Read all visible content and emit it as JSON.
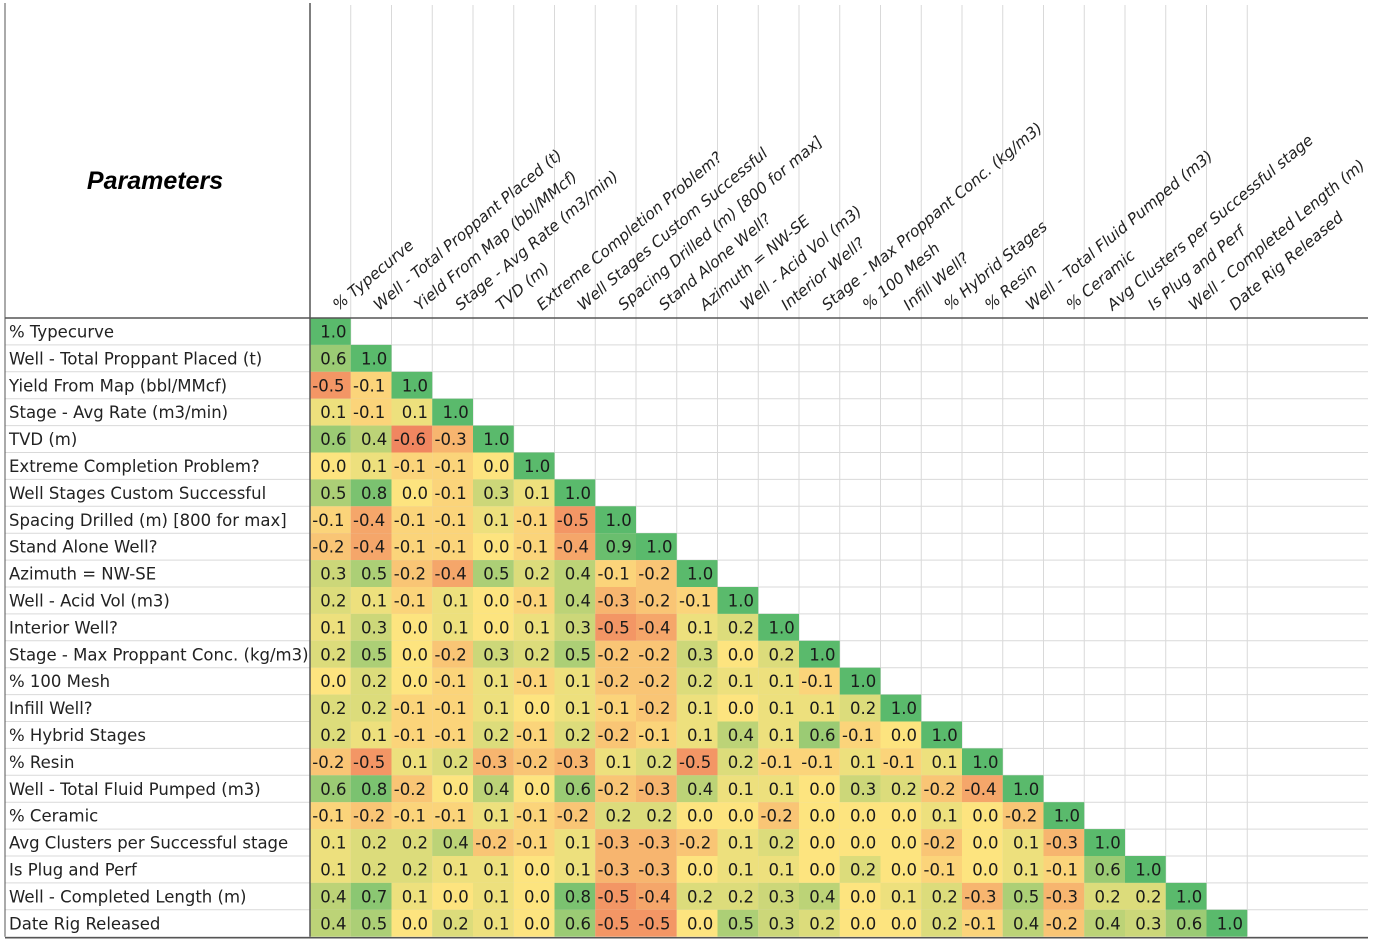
{
  "header": {
    "title": "Parameters"
  },
  "chart_data": {
    "type": "heatmap",
    "title": "Parameters",
    "color_scale": {
      "low": "#e8484b",
      "mid": "#fde47f",
      "high": "#5aba6c",
      "range": [
        -1,
        1
      ]
    },
    "grid": true,
    "labels": [
      "% Typecurve",
      "Well - Total Proppant Placed (t)",
      "Yield From Map (bbl/MMcf)",
      "Stage - Avg Rate (m3/min)",
      "TVD (m)",
      "Extreme Completion Problem?",
      "Well Stages Custom Successful",
      "Spacing Drilled (m) [800 for max]",
      "Stand Alone Well?",
      "Azimuth = NW-SE",
      "Well - Acid Vol (m3)",
      "Interior Well?",
      "Stage - Max Proppant Conc. (kg/m3)",
      "% 100 Mesh",
      "Infill Well?",
      "% Hybrid Stages",
      "% Resin",
      "Well - Total Fluid Pumped (m3)",
      "% Ceramic",
      "Avg Clusters per Successful stage",
      "Is Plug and Perf",
      "Well - Completed Length (m)",
      "Date Rig Released"
    ],
    "matrix": [
      [
        "1.0"
      ],
      [
        "0.6",
        "1.0"
      ],
      [
        "-0.5",
        "-0.1",
        "1.0"
      ],
      [
        "0.1",
        "-0.1",
        "0.1",
        "1.0"
      ],
      [
        "0.6",
        "0.4",
        "-0.6",
        "-0.3",
        "1.0"
      ],
      [
        "0.0",
        "0.1",
        "-0.1",
        "-0.1",
        "0.0",
        "1.0"
      ],
      [
        "0.5",
        "0.8",
        "0.0",
        "-0.1",
        "0.3",
        "0.1",
        "1.0"
      ],
      [
        "-0.1",
        "-0.4",
        "-0.1",
        "-0.1",
        "0.1",
        "-0.1",
        "-0.5",
        "1.0"
      ],
      [
        "-0.2",
        "-0.4",
        "-0.1",
        "-0.1",
        "0.0",
        "-0.1",
        "-0.4",
        "0.9",
        "1.0"
      ],
      [
        "0.3",
        "0.5",
        "-0.2",
        "-0.4",
        "0.5",
        "0.2",
        "0.4",
        "-0.1",
        "-0.2",
        "1.0"
      ],
      [
        "0.2",
        "0.1",
        "-0.1",
        "0.1",
        "0.0",
        "-0.1",
        "0.4",
        "-0.3",
        "-0.2",
        "-0.1",
        "1.0"
      ],
      [
        "0.1",
        "0.3",
        "0.0",
        "0.1",
        "0.0",
        "0.1",
        "0.3",
        "-0.5",
        "-0.4",
        "0.1",
        "0.2",
        "1.0"
      ],
      [
        "0.2",
        "0.5",
        "0.0",
        "-0.2",
        "0.3",
        "0.2",
        "0.5",
        "-0.2",
        "-0.2",
        "0.3",
        "0.0",
        "0.2",
        "1.0"
      ],
      [
        "0.0",
        "0.2",
        "0.0",
        "-0.1",
        "0.1",
        "-0.1",
        "0.1",
        "-0.2",
        "-0.2",
        "0.2",
        "0.1",
        "0.1",
        "-0.1",
        "1.0"
      ],
      [
        "0.2",
        "0.2",
        "-0.1",
        "-0.1",
        "0.1",
        "0.0",
        "0.1",
        "-0.1",
        "-0.2",
        "0.1",
        "0.0",
        "0.1",
        "0.1",
        "0.2",
        "1.0"
      ],
      [
        "0.2",
        "0.1",
        "-0.1",
        "-0.1",
        "0.2",
        "-0.1",
        "0.2",
        "-0.2",
        "-0.1",
        "0.1",
        "0.4",
        "0.1",
        "0.6",
        "-0.1",
        "0.0",
        "1.0"
      ],
      [
        "-0.2",
        "-0.5",
        "0.1",
        "0.2",
        "-0.3",
        "-0.2",
        "-0.3",
        "0.1",
        "0.2",
        "-0.5",
        "0.2",
        "-0.1",
        "-0.1",
        "0.1",
        "-0.1",
        "0.1",
        "1.0"
      ],
      [
        "0.6",
        "0.8",
        "-0.2",
        "0.0",
        "0.4",
        "0.0",
        "0.6",
        "-0.2",
        "-0.3",
        "0.4",
        "0.1",
        "0.1",
        "0.0",
        "0.3",
        "0.2",
        "-0.2",
        "-0.4",
        "1.0"
      ],
      [
        "-0.1",
        "-0.2",
        "-0.1",
        "-0.1",
        "0.1",
        "-0.1",
        "-0.2",
        "0.2",
        "0.2",
        "0.0",
        "0.0",
        "-0.2",
        "0.0",
        "0.0",
        "0.0",
        "0.1",
        "0.0",
        "-0.2",
        "1.0"
      ],
      [
        "0.1",
        "0.2",
        "0.2",
        "0.4",
        "-0.2",
        "-0.1",
        "0.1",
        "-0.3",
        "-0.3",
        "-0.2",
        "0.1",
        "0.2",
        "0.0",
        "0.0",
        "0.0",
        "-0.2",
        "0.0",
        "0.1",
        "-0.3",
        "1.0"
      ],
      [
        "0.1",
        "0.2",
        "0.2",
        "0.1",
        "0.1",
        "0.0",
        "0.1",
        "-0.3",
        "-0.3",
        "0.0",
        "0.1",
        "0.1",
        "0.0",
        "0.2",
        "0.0",
        "-0.1",
        "0.0",
        "0.1",
        "-0.1",
        "0.6",
        "1.0"
      ],
      [
        "0.4",
        "0.7",
        "0.1",
        "0.0",
        "0.1",
        "0.0",
        "0.8",
        "-0.5",
        "-0.4",
        "0.2",
        "0.2",
        "0.3",
        "0.4",
        "0.0",
        "0.1",
        "0.2",
        "-0.3",
        "0.5",
        "-0.3",
        "0.2",
        "0.2",
        "1.0"
      ],
      [
        "0.4",
        "0.5",
        "0.0",
        "0.2",
        "0.1",
        "0.0",
        "0.6",
        "-0.5",
        "-0.5",
        "0.0",
        "0.5",
        "0.3",
        "0.2",
        "0.0",
        "0.0",
        "0.2",
        "-0.1",
        "0.4",
        "-0.2",
        "0.4",
        "0.3",
        "0.6",
        "1.0"
      ]
    ]
  }
}
